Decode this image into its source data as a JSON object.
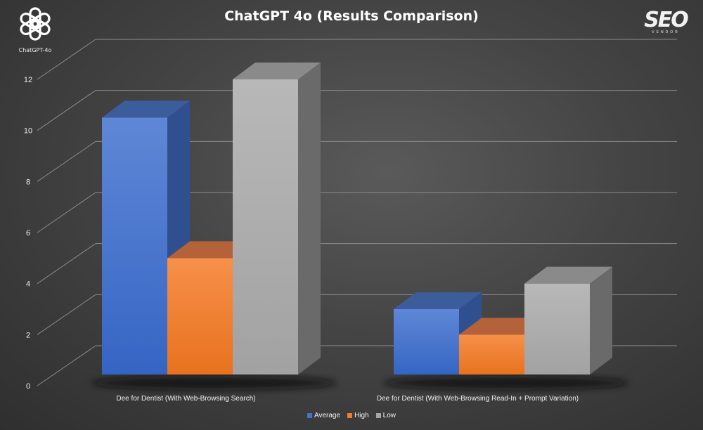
{
  "logo": {
    "caption": "ChatGPT-4o"
  },
  "brand": {
    "main": "SEO",
    "sub": "VENDOR"
  },
  "chart_data": {
    "type": "bar",
    "title": "ChatGPT 4o (Results Comparison)",
    "categories": [
      "Dee for Dentist (With Web-Browsing Search)",
      "Dee for Dentist (With Web-Browsing Read-In + Prompt Variation)"
    ],
    "series": [
      {
        "name": "Average",
        "values": [
          10.5,
          3.0
        ],
        "color": "#4472c4"
      },
      {
        "name": "High",
        "values": [
          5.0,
          2.0
        ],
        "color": "#ed7d31"
      },
      {
        "name": "Low",
        "values": [
          12.0,
          4.0
        ],
        "color": "#a5a5a5"
      }
    ],
    "ylim": [
      0,
      12
    ],
    "yticks": [
      0,
      2,
      4,
      6,
      8,
      10,
      12
    ],
    "grid": true,
    "legend": "bottom"
  }
}
